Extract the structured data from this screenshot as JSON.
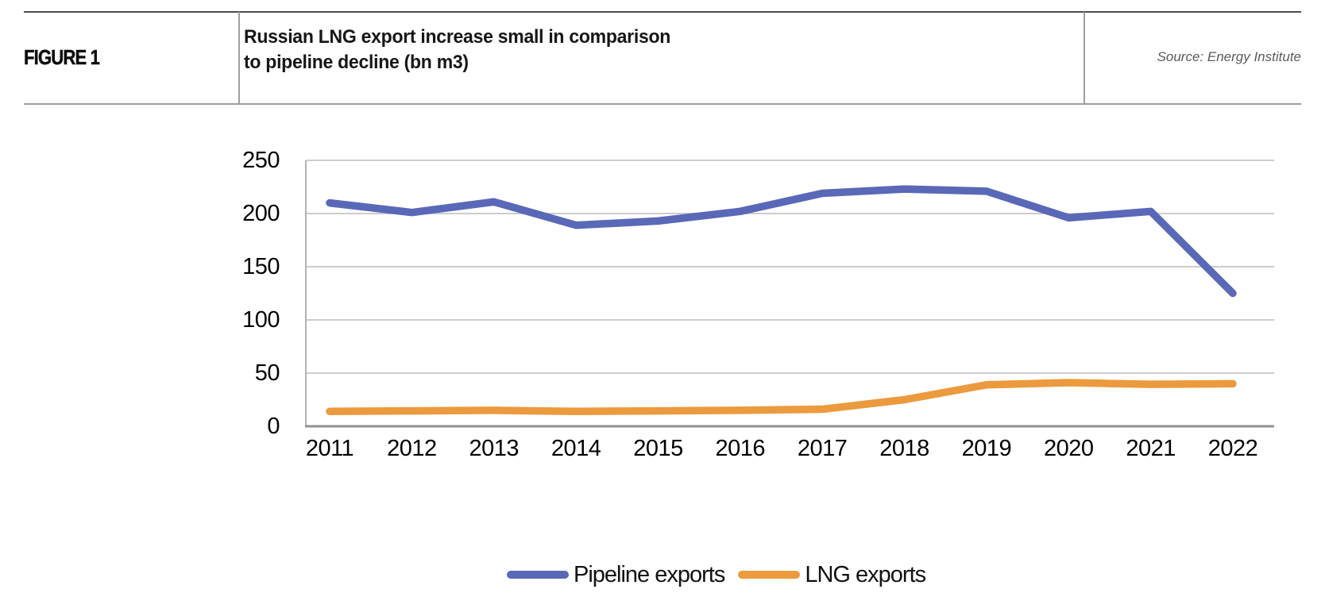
{
  "header": {
    "figure_label": "FIGURE 1",
    "title_lines": [
      "Russian LNG export increase small in comparison",
      "to pipeline decline (bn m3)"
    ],
    "source": "Source: Energy Institute"
  },
  "chart_data": {
    "type": "line",
    "title": "Russian LNG export increase small in comparison to pipeline decline (bn m3)",
    "xlabel": "",
    "ylabel": "",
    "x": [
      "2011",
      "2012",
      "2013",
      "2014",
      "2015",
      "2016",
      "2017",
      "2018",
      "2019",
      "2020",
      "2021",
      "2022"
    ],
    "series": [
      {
        "name": "Pipeline exports",
        "color": "#5A68B8",
        "values": [
          210,
          201,
          211,
          189,
          193,
          202,
          219,
          223,
          221,
          196,
          202,
          125
        ]
      },
      {
        "name": "LNG exports",
        "color": "#EC9A3E",
        "values": [
          14,
          14.5,
          15,
          14,
          14.5,
          15,
          16,
          25,
          39,
          41,
          39.5,
          40
        ]
      }
    ],
    "ylim": [
      0,
      250
    ],
    "yticks": [
      0,
      50,
      100,
      150,
      200,
      250
    ],
    "grid": true,
    "legend_position": "bottom",
    "gridline_color": "#cdcdcd",
    "x_axis_color": "#929292",
    "y_axis_color": "#b3b3b3"
  }
}
